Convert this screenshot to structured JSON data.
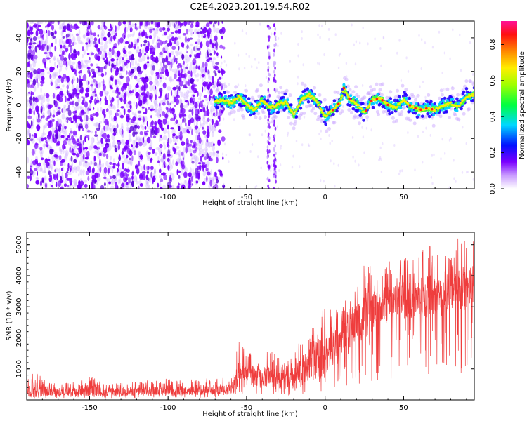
{
  "title": "C2E4.2023.201.19.54.R02",
  "chart_data": [
    {
      "type": "heatmap",
      "xlabel": "Height of straight line (km)",
      "ylabel": "Frequency (Hz)",
      "xlim": [
        -190,
        95
      ],
      "ylim": [
        -50,
        50
      ],
      "x_ticks": [
        -150,
        -100,
        -50,
        0,
        50
      ],
      "y_ticks": [
        -40,
        -20,
        0,
        20,
        40
      ],
      "colorbar": {
        "label": "Normalized spectral amplitude",
        "range": [
          0.0,
          0.93
        ],
        "ticks": [
          "0.0",
          "0.2",
          "0.4",
          "0.6",
          "0.8"
        ],
        "colormap": "white-purple-blue-cyan-green-yellow-orange-red-magenta"
      },
      "noise_region": {
        "x_from": -190,
        "x_to": -68,
        "dominant_color": "#7a00ff"
      },
      "signal_track": {
        "x": [
          -70,
          -65,
          -60,
          -55,
          -50,
          -45,
          -40,
          -35,
          -30,
          -25,
          -20,
          -15,
          -10,
          -5,
          0,
          5,
          10,
          12,
          15,
          20,
          25,
          30,
          35,
          40,
          45,
          50,
          55,
          60,
          65,
          70,
          75,
          80,
          85,
          90,
          95
        ],
        "frequency": [
          2,
          3,
          1,
          5,
          0,
          -3,
          3,
          -2,
          0,
          2,
          -6,
          3,
          6,
          2,
          -7,
          -3,
          2,
          10,
          4,
          1,
          -5,
          3,
          4,
          0,
          -2,
          3,
          -1,
          -3,
          -2,
          -3,
          0,
          1,
          -1,
          5,
          6
        ]
      },
      "vertical_streaks": [
        {
          "x": -32
        },
        {
          "x": -36
        }
      ]
    },
    {
      "type": "line",
      "xlabel": "Height of straight line (km)",
      "ylabel": "SNR (10 * v/v)",
      "xlim": [
        -190,
        95
      ],
      "ylim": [
        0,
        5400
      ],
      "x_ticks": [
        -150,
        -100,
        -50,
        0,
        50
      ],
      "y_ticks": [
        1000,
        2000,
        3000,
        4000,
        5000
      ],
      "series": [
        {
          "color": "#ee3333",
          "envelope_x": [
            -190,
            -185,
            -180,
            -170,
            -160,
            -150,
            -140,
            -130,
            -120,
            -110,
            -100,
            -90,
            -80,
            -70,
            -60,
            -55,
            -50,
            -45,
            -40,
            -35,
            -30,
            -25,
            -20,
            -15,
            -10,
            -5,
            0,
            5,
            10,
            15,
            20,
            25,
            30,
            35,
            40,
            45,
            50,
            55,
            60,
            65,
            70,
            75,
            80,
            85,
            90,
            95
          ],
          "envelope_mean": [
            300,
            350,
            300,
            250,
            280,
            300,
            250,
            260,
            280,
            300,
            320,
            300,
            320,
            330,
            350,
            700,
            900,
            750,
            700,
            850,
            700,
            600,
            700,
            900,
            1100,
            1300,
            1500,
            1700,
            1900,
            2300,
            2500,
            2700,
            2850,
            3000,
            3100,
            3200,
            3300,
            3250,
            3300,
            3350,
            3400,
            3300,
            3400,
            3500,
            3600,
            3700
          ],
          "envelope_max": [
            700,
            1100,
            700,
            500,
            600,
            800,
            500,
            550,
            600,
            650,
            700,
            650,
            700,
            700,
            750,
            1900,
            1600,
            1500,
            1300,
            1900,
            1400,
            1200,
            1500,
            2000,
            2300,
            2700,
            3000,
            3000,
            2800,
            3800,
            4000,
            4400,
            4300,
            4000,
            4600,
            4300,
            4800,
            4600,
            4600,
            5200,
            4700,
            4800,
            4600,
            5300,
            5200,
            5300
          ]
        }
      ]
    }
  ]
}
